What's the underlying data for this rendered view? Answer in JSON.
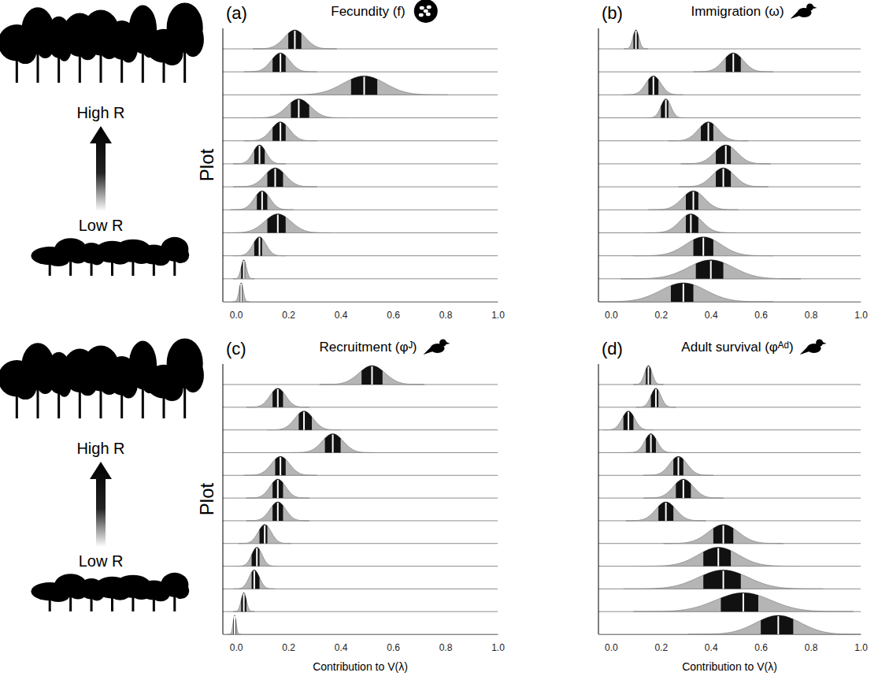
{
  "chart_data": [
    {
      "type": "ridgeline",
      "letter": "(a)",
      "title": "Fecundity (f)",
      "y_label": "Plot",
      "annotations": [
        "High R",
        "Low R"
      ],
      "color": "#b5b5b5",
      "tick_labels": "x",
      "xlim": [
        -0.05,
        1.0
      ],
      "xticks": [
        {
          "value": 0,
          "label": "0.0"
        },
        0.2,
        0.4,
        0.6,
        0.8,
        {
          "value": 1,
          "label": "1.0"
        }
      ],
      "categories": [
        null,
        null,
        null,
        null,
        null,
        null,
        null,
        null,
        null,
        null,
        null,
        null
      ],
      "values": [
        0.225,
        0.17,
        0.49,
        0.24,
        0.17,
        0.09,
        0.15,
        0.1,
        0.16,
        0.09,
        0.03,
        0.02
      ],
      "lower": [
        0.2,
        0.14,
        0.44,
        0.21,
        0.14,
        0.07,
        0.12,
        0.08,
        0.12,
        0.07,
        0.02,
        0.015
      ],
      "upper": [
        0.25,
        0.19,
        0.54,
        0.28,
        0.19,
        0.11,
        0.18,
        0.12,
        0.19,
        0.1,
        0.035,
        0.025
      ],
      "sd": [
        0.04,
        0.035,
        0.08,
        0.045,
        0.035,
        0.025,
        0.04,
        0.03,
        0.05,
        0.025,
        0.01,
        0.008
      ]
    },
    {
      "type": "ridgeline",
      "letter": "(b)",
      "title": "Immigration (ω)",
      "color": "#b5b5b5",
      "tick_labels": "x",
      "xlim": [
        -0.05,
        1.0
      ],
      "xticks": [
        {
          "value": 0,
          "label": "0.0"
        },
        0.2,
        0.4,
        0.6,
        0.8,
        {
          "value": 1,
          "label": "1.0"
        }
      ],
      "categories": [
        null,
        null,
        null,
        null,
        null,
        null,
        null,
        null,
        null,
        null,
        null,
        null
      ],
      "values": [
        0.1,
        0.49,
        0.17,
        0.22,
        0.39,
        0.46,
        0.45,
        0.33,
        0.32,
        0.37,
        0.4,
        0.29
      ],
      "lower": [
        0.09,
        0.46,
        0.15,
        0.2,
        0.36,
        0.42,
        0.42,
        0.3,
        0.3,
        0.33,
        0.34,
        0.24
      ],
      "upper": [
        0.11,
        0.52,
        0.19,
        0.23,
        0.41,
        0.48,
        0.48,
        0.35,
        0.35,
        0.41,
        0.45,
        0.33
      ],
      "sd": [
        0.012,
        0.04,
        0.03,
        0.02,
        0.04,
        0.045,
        0.045,
        0.045,
        0.045,
        0.07,
        0.09,
        0.09
      ]
    },
    {
      "type": "ridgeline",
      "letter": "(c)",
      "title": "Recruitment (φᴶ)",
      "y_label": "Plot",
      "x_label": "Contribution to V(λ)",
      "annotations": [
        "High R",
        "Low R"
      ],
      "color": "#b5b5b5",
      "tick_labels": "x",
      "xlim": [
        -0.05,
        1.0
      ],
      "xticks": [
        {
          "value": 0,
          "label": "0.0"
        },
        0.2,
        0.4,
        0.6,
        0.8,
        {
          "value": 1,
          "label": "1.0"
        }
      ],
      "categories": [
        null,
        null,
        null,
        null,
        null,
        null,
        null,
        null,
        null,
        null,
        null,
        null
      ],
      "values": [
        0.52,
        0.16,
        0.26,
        0.37,
        0.17,
        0.16,
        0.16,
        0.11,
        0.08,
        0.07,
        0.03,
        -0.005
      ],
      "lower": [
        0.48,
        0.14,
        0.24,
        0.34,
        0.15,
        0.14,
        0.14,
        0.09,
        0.06,
        0.06,
        0.02,
        -0.01
      ],
      "upper": [
        0.56,
        0.18,
        0.29,
        0.4,
        0.19,
        0.18,
        0.18,
        0.12,
        0.09,
        0.09,
        0.04,
        0.0
      ],
      "sd": [
        0.05,
        0.03,
        0.035,
        0.04,
        0.035,
        0.03,
        0.03,
        0.025,
        0.02,
        0.02,
        0.01,
        0.006
      ]
    },
    {
      "type": "ridgeline",
      "letter": "(d)",
      "title": "Adult survival (φᴬᵈ)",
      "x_label": "Contribution to V(λ)",
      "color": "#b5b5b5",
      "tick_labels": "x",
      "xlim": [
        -0.05,
        1.0
      ],
      "xticks": [
        {
          "value": 0,
          "label": "0.0"
        },
        0.2,
        0.4,
        0.6,
        0.8,
        {
          "value": 1,
          "label": "1.0"
        }
      ],
      "categories": [
        null,
        null,
        null,
        null,
        null,
        null,
        null,
        null,
        null,
        null,
        null,
        null
      ],
      "values": [
        0.15,
        0.18,
        0.07,
        0.16,
        0.27,
        0.29,
        0.22,
        0.45,
        0.43,
        0.45,
        0.53,
        0.67
      ],
      "lower": [
        0.14,
        0.16,
        0.05,
        0.14,
        0.25,
        0.26,
        0.19,
        0.41,
        0.37,
        0.37,
        0.44,
        0.6
      ],
      "upper": [
        0.16,
        0.19,
        0.09,
        0.18,
        0.29,
        0.32,
        0.25,
        0.49,
        0.48,
        0.52,
        0.59,
        0.73
      ],
      "sd": [
        0.015,
        0.02,
        0.025,
        0.025,
        0.035,
        0.04,
        0.04,
        0.06,
        0.08,
        0.1,
        0.11,
        0.09
      ]
    }
  ]
}
